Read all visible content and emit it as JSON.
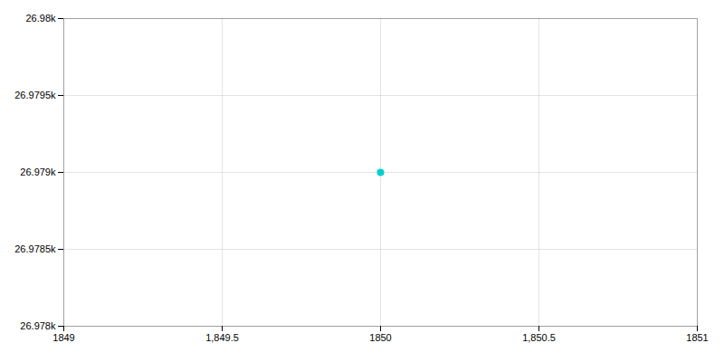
{
  "chart_data": {
    "type": "scatter",
    "x": [
      1850
    ],
    "values": [
      26979
    ],
    "color": "#00CED1",
    "xlim": [
      1849,
      1851
    ],
    "ylim": [
      26978,
      26980
    ],
    "xticks": [
      1849,
      {
        "value": 1849.5,
        "label": "1,849.5"
      },
      1850,
      {
        "value": 1850.5,
        "label": "1,850.5"
      },
      1851
    ],
    "yticks": [
      {
        "value": 26978,
        "label": "26.978k"
      },
      {
        "value": 26978.5,
        "label": "26.9785k"
      },
      {
        "value": 26979,
        "label": "26.979k"
      },
      {
        "value": 26979.5,
        "label": "26.9795k"
      },
      {
        "value": 26980,
        "label": "26.98k"
      }
    ],
    "grid": true
  }
}
